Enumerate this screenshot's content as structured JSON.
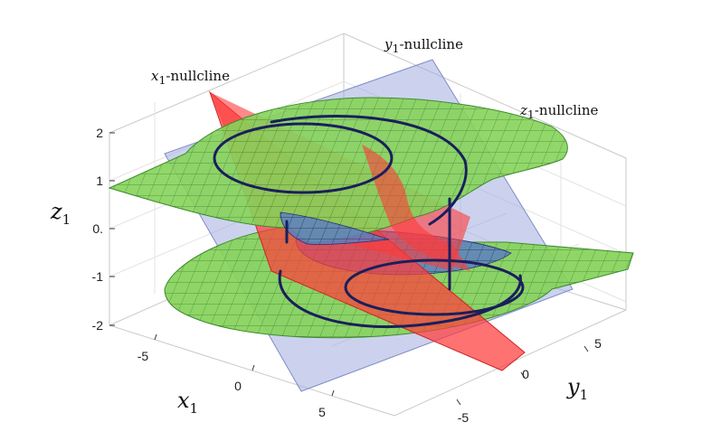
{
  "chart_data": {
    "type": "surface3d",
    "axes": {
      "x": {
        "label": "x1",
        "range": [
          -8,
          8
        ],
        "ticks": [
          "-5",
          "0",
          "5"
        ]
      },
      "y": {
        "label": "y1",
        "range": [
          -8,
          8
        ],
        "ticks": [
          "-5",
          "0",
          "5"
        ]
      },
      "z": {
        "label": "z1",
        "range": [
          -2,
          2
        ],
        "ticks": [
          "2",
          "1",
          "0.",
          "-1",
          "-2"
        ]
      }
    },
    "grid": true,
    "surfaces": [
      {
        "name": "x1-nullcline",
        "kind": "plane",
        "color": "#ff3b3b",
        "opacity": 0.75
      },
      {
        "name": "y1-nullcline",
        "kind": "plane",
        "color": "#9aa6dc",
        "opacity": 0.5
      },
      {
        "name": "z1-nullcline",
        "kind": "surface",
        "color": "#7fd34a",
        "opacity": 0.85
      }
    ],
    "trajectory": {
      "color": "#1a1f5c"
    },
    "annotations": {
      "x1": {
        "base": "x",
        "sub": "1",
        "text": "-nullcline"
      },
      "y1": {
        "base": "y",
        "sub": "1",
        "text": "-nullcline"
      },
      "z1": {
        "base": "z",
        "sub": "1",
        "text": "-nullcline"
      }
    },
    "axis_titles": {
      "x": {
        "base": "x",
        "sub": "1"
      },
      "y": {
        "base": "y",
        "sub": "1"
      },
      "z": {
        "base": "z",
        "sub": "1"
      }
    }
  }
}
